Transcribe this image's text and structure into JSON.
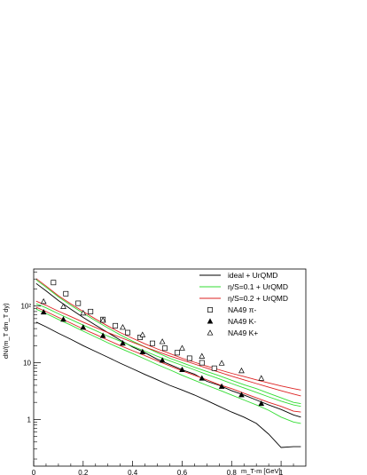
{
  "chart_data": {
    "type": "line",
    "xlabel": "m_T-m [GeV]",
    "ylabel": "dN/(m_T dm_T dy)",
    "xlim": [
      0,
      1.1
    ],
    "ylim": [
      0.15,
      450
    ],
    "yscale": "log",
    "x_ticks": [
      0,
      0.2,
      0.4,
      0.6,
      0.8,
      1
    ],
    "x_tick_labels": [
      "0",
      "0.2",
      "0.4",
      "0.6",
      "0.8",
      "1"
    ],
    "y_ticks": [
      1,
      10,
      100
    ],
    "y_tick_labels": [
      "1",
      "10",
      "10²"
    ],
    "legend_position": "top-right",
    "series": [
      {
        "name": "ideal + UrQMD",
        "kind": "line",
        "color": "#000000",
        "x": [
          0.01,
          0.05,
          0.1,
          0.15,
          0.2,
          0.25,
          0.3,
          0.35,
          0.4,
          0.45,
          0.5,
          0.55,
          0.6,
          0.65,
          0.7,
          0.75,
          0.8,
          0.85,
          0.9,
          0.95,
          1.0,
          1.05,
          1.08
        ],
        "y": [
          250,
          185,
          125,
          88,
          63,
          46,
          34,
          25,
          19,
          15,
          11.5,
          9.3,
          7.5,
          6.3,
          4.7,
          4.0,
          3.2,
          2.7,
          2.2,
          1.8,
          1.5,
          1.2,
          1.1
        ]
      },
      {
        "name": "ideal + UrQMD",
        "kind": "line",
        "color": "#000000",
        "x": [
          0.01,
          0.05,
          0.1,
          0.15,
          0.2,
          0.25,
          0.3,
          0.35,
          0.4,
          0.45,
          0.5,
          0.55,
          0.6,
          0.65,
          0.7,
          0.75,
          0.8,
          0.85,
          0.9,
          0.95,
          1.0,
          1.05,
          1.08
        ],
        "y": [
          52,
          43,
          33,
          26,
          20,
          15.8,
          12.5,
          9.8,
          7.8,
          6.2,
          5.0,
          4.0,
          3.3,
          2.7,
          2.15,
          1.7,
          1.35,
          1.1,
          0.85,
          0.55,
          0.32,
          0.33,
          0.33
        ]
      },
      {
        "name": "η/S=0.1 + UrQMD",
        "kind": "line",
        "color": "#33dd33",
        "x": [
          0.01,
          0.05,
          0.1,
          0.15,
          0.2,
          0.25,
          0.3,
          0.35,
          0.4,
          0.45,
          0.5,
          0.55,
          0.6,
          0.65,
          0.7,
          0.75,
          0.8,
          0.85,
          0.9,
          0.95,
          1.0,
          1.05,
          1.08
        ],
        "y": [
          290,
          215,
          145,
          103,
          75,
          55,
          41,
          31,
          24,
          19,
          15,
          12,
          10,
          8.3,
          7.0,
          5.9,
          4.9,
          4.1,
          3.5,
          2.9,
          2.4,
          2.0,
          1.9
        ]
      },
      {
        "name": "η/S=0.1 + UrQMD",
        "kind": "line",
        "color": "#33dd33",
        "x": [
          0.01,
          0.05,
          0.1,
          0.15,
          0.2,
          0.25,
          0.3,
          0.35,
          0.4,
          0.45,
          0.5,
          0.55,
          0.6,
          0.65,
          0.7,
          0.75,
          0.8,
          0.85,
          0.9,
          0.95,
          1.0,
          1.05,
          1.08
        ],
        "y": [
          88,
          74,
          58,
          46,
          36,
          28.5,
          22.5,
          18,
          14.5,
          11.6,
          9.3,
          7.5,
          6.0,
          4.9,
          4.0,
          3.3,
          2.7,
          2.2,
          1.8,
          1.45,
          1.1,
          0.9,
          0.85
        ]
      },
      {
        "name": "η/S=0.1 + UrQMD",
        "kind": "line",
        "color": "#33dd33",
        "x": [
          0.01,
          0.05,
          0.1,
          0.15,
          0.2,
          0.25,
          0.3,
          0.35,
          0.4,
          0.45,
          0.5,
          0.55,
          0.6,
          0.65,
          0.7,
          0.75,
          0.8,
          0.85,
          0.9,
          0.95,
          1.0,
          1.05,
          1.08
        ],
        "y": [
          110,
          93,
          73,
          58,
          46,
          37,
          29.5,
          24,
          19.5,
          16,
          13,
          10.8,
          9.0,
          7.5,
          6.2,
          5.2,
          4.3,
          3.6,
          3.0,
          2.5,
          2.1,
          1.8,
          1.7
        ]
      },
      {
        "name": "η/S=0.2 + UrQMD",
        "kind": "line",
        "color": "#dd2222",
        "x": [
          0.01,
          0.05,
          0.1,
          0.15,
          0.2,
          0.25,
          0.3,
          0.35,
          0.4,
          0.45,
          0.5,
          0.55,
          0.6,
          0.65,
          0.7,
          0.75,
          0.8,
          0.85,
          0.9,
          0.95,
          1.0,
          1.05,
          1.08
        ],
        "y": [
          305,
          225,
          152,
          109,
          80,
          59,
          44.5,
          34,
          27,
          21.5,
          17.5,
          14.5,
          12,
          10.2,
          8.7,
          7.5,
          6.5,
          5.7,
          5.0,
          4.4,
          3.9,
          3.5,
          3.3
        ]
      },
      {
        "name": "η/S=0.2 + UrQMD",
        "kind": "line",
        "color": "#dd2222",
        "x": [
          0.01,
          0.05,
          0.1,
          0.15,
          0.2,
          0.25,
          0.3,
          0.35,
          0.4,
          0.45,
          0.5,
          0.55,
          0.6,
          0.65,
          0.7,
          0.75,
          0.8,
          0.85,
          0.9,
          0.95,
          1.0,
          1.05,
          1.08
        ],
        "y": [
          95,
          80,
          63,
          50,
          39.5,
          31.5,
          25,
          20,
          16.3,
          13.3,
          10.8,
          8.8,
          7.2,
          6.0,
          5.0,
          4.1,
          3.5,
          2.9,
          2.4,
          2.0,
          1.7,
          1.4,
          1.35
        ]
      },
      {
        "name": "η/S=0.2 + UrQMD",
        "kind": "line",
        "color": "#dd2222",
        "x": [
          0.01,
          0.05,
          0.1,
          0.15,
          0.2,
          0.25,
          0.3,
          0.35,
          0.4,
          0.45,
          0.5,
          0.55,
          0.6,
          0.65,
          0.7,
          0.75,
          0.8,
          0.85,
          0.9,
          0.95,
          1.0,
          1.05,
          1.08
        ],
        "y": [
          122,
          103,
          81,
          65,
          52,
          42,
          34,
          28,
          23,
          19,
          15.8,
          13.2,
          11.2,
          9.5,
          8.0,
          6.8,
          5.8,
          5.0,
          4.3,
          3.7,
          3.2,
          2.8,
          2.6
        ]
      },
      {
        "name": "NA49 π-",
        "kind": "marker",
        "marker": "open-square",
        "x": [
          0.08,
          0.13,
          0.18,
          0.23,
          0.28,
          0.33,
          0.38,
          0.43,
          0.48,
          0.53,
          0.58,
          0.63,
          0.68,
          0.73
        ],
        "y": [
          260,
          165,
          112,
          80,
          58,
          45,
          34,
          28,
          22,
          18,
          15,
          12,
          10,
          8
        ]
      },
      {
        "name": "NA49 K-",
        "kind": "marker",
        "marker": "filled-triangle",
        "x": [
          0.04,
          0.12,
          0.2,
          0.28,
          0.36,
          0.44,
          0.52,
          0.6,
          0.68,
          0.76,
          0.84,
          0.92
        ],
        "y": [
          78,
          58,
          42,
          30,
          22,
          15.5,
          11,
          7.5,
          5.3,
          3.8,
          2.7,
          1.9
        ]
      },
      {
        "name": "NA49 K+",
        "kind": "marker",
        "marker": "open-triangle",
        "x": [
          0.04,
          0.12,
          0.2,
          0.28,
          0.36,
          0.44,
          0.52,
          0.6,
          0.68,
          0.76,
          0.84,
          0.92
        ],
        "y": [
          120,
          98,
          75,
          56,
          42,
          31,
          23.5,
          18,
          13,
          9.8,
          7.2,
          5.3
        ]
      }
    ],
    "legend": [
      {
        "name": "ideal + UrQMD",
        "symbol": "line",
        "color": "#000000"
      },
      {
        "name": "η/S=0.1 + UrQMD",
        "symbol": "line",
        "color": "#33dd33"
      },
      {
        "name": "η/S=0.2 + UrQMD",
        "symbol": "line",
        "color": "#dd2222"
      },
      {
        "name": "NA49 π-",
        "symbol": "open-square",
        "color": "#000000"
      },
      {
        "name": "NA49 K-",
        "symbol": "filled-triangle",
        "color": "#000000"
      },
      {
        "name": "NA49 K+",
        "symbol": "open-triangle",
        "color": "#000000"
      }
    ]
  }
}
